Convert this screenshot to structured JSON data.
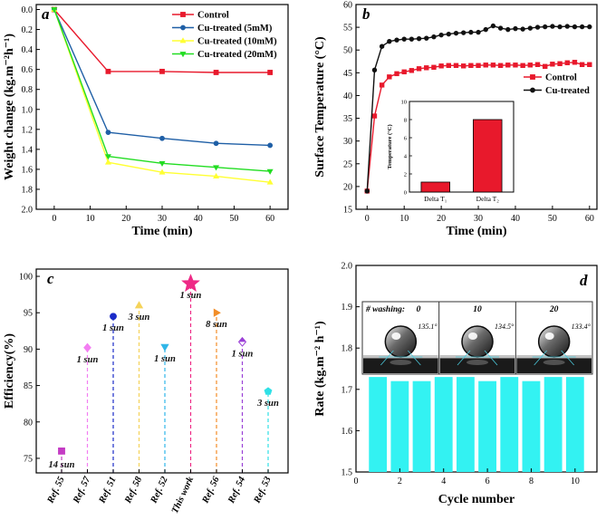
{
  "chart_data": [
    {
      "panel": "a",
      "type": "line",
      "xlabel": "Time (min)",
      "ylabel": "Weight change (kg.m⁻²h⁻¹)",
      "xlim": [
        -5,
        65
      ],
      "ylim": [
        -0.05,
        2.0
      ],
      "y_inverted": true,
      "xticks": [
        0,
        10,
        20,
        30,
        40,
        50,
        60
      ],
      "yticks": [
        0.0,
        0.2,
        0.4,
        0.6,
        0.8,
        1.0,
        1.2,
        1.4,
        1.6,
        1.8,
        2.0
      ],
      "x": [
        0,
        15,
        30,
        45,
        60
      ],
      "legend_position": "top-right",
      "series": [
        {
          "name": "Control",
          "color": "#e8192c",
          "marker": "square",
          "values": [
            0.0,
            0.62,
            0.62,
            0.63,
            0.63
          ]
        },
        {
          "name": "Cu-treated  (5mM)",
          "color": "#1f5fa6",
          "marker": "circle",
          "values": [
            0.0,
            1.23,
            1.29,
            1.34,
            1.36
          ]
        },
        {
          "name": "Cu-treated  (10mM)",
          "color": "#ffff33",
          "marker": "triangle",
          "values": [
            0.0,
            1.53,
            1.63,
            1.67,
            1.73
          ]
        },
        {
          "name": "Cu-treated  (20mM)",
          "color": "#22dd22",
          "marker": "triangle-down",
          "values": [
            0.0,
            1.47,
            1.54,
            1.58,
            1.62
          ]
        }
      ]
    },
    {
      "panel": "b",
      "type": "line",
      "xlabel": "Time (min)",
      "ylabel": "Surface Temperature (°C)",
      "xlim": [
        -3,
        62
      ],
      "ylim": [
        15,
        60
      ],
      "xticks": [
        0,
        10,
        20,
        30,
        40,
        50,
        60
      ],
      "yticks": [
        15,
        20,
        25,
        30,
        35,
        40,
        45,
        50,
        55,
        60
      ],
      "legend_position": "right",
      "series": [
        {
          "name": "Control",
          "color": "#e8192c",
          "marker": "square",
          "x": [
            0,
            2,
            4,
            6,
            8,
            10,
            12,
            14,
            16,
            18,
            20,
            22,
            24,
            26,
            28,
            30,
            32,
            34,
            36,
            38,
            40,
            42,
            44,
            46,
            48,
            50,
            52,
            54,
            56,
            58,
            60
          ],
          "values": [
            19.0,
            35.5,
            42.3,
            44.1,
            44.8,
            45.2,
            45.5,
            45.9,
            46.1,
            46.2,
            46.5,
            46.6,
            46.6,
            46.5,
            46.6,
            46.6,
            46.7,
            46.7,
            46.6,
            46.7,
            46.7,
            46.6,
            46.7,
            46.8,
            46.4,
            46.9,
            47.0,
            47.2,
            47.3,
            46.8,
            46.8
          ]
        },
        {
          "name": "Cu-treated",
          "color": "#111111",
          "marker": "circle",
          "x": [
            0,
            2,
            4,
            6,
            8,
            10,
            12,
            14,
            16,
            18,
            20,
            22,
            24,
            26,
            28,
            30,
            32,
            34,
            36,
            38,
            40,
            42,
            44,
            46,
            48,
            50,
            52,
            54,
            56,
            58,
            60
          ],
          "values": [
            19.0,
            45.6,
            50.8,
            51.9,
            52.2,
            52.4,
            52.4,
            52.5,
            52.6,
            52.9,
            53.3,
            53.5,
            53.7,
            53.8,
            53.9,
            53.9,
            54.5,
            55.3,
            54.8,
            54.5,
            54.7,
            54.6,
            54.8,
            55.0,
            55.1,
            55.2,
            55.1,
            55.2,
            55.1,
            55.1,
            55.1
          ]
        }
      ],
      "inset": {
        "type": "bar",
        "ylabel": "Temperature (°C)",
        "categories": [
          "Delta T₁",
          "Delta T₂"
        ],
        "values": [
          1.1,
          8.0
        ],
        "ylim": [
          0,
          10
        ],
        "yticks": [
          0,
          2,
          4,
          6,
          8,
          10
        ],
        "color": "#e8192c"
      }
    },
    {
      "panel": "c",
      "type": "scatter",
      "ylabel": "Efficiency(%)",
      "ylim": [
        73,
        101
      ],
      "yticks": [
        75,
        80,
        85,
        90,
        95,
        100
      ],
      "categories": [
        "Ref. 55",
        "Ref. 57",
        "Ref. 51",
        "Ref. 58",
        "Ref. 52",
        "This work",
        "Ref. 56",
        "Ref. 54",
        "Ref. 53"
      ],
      "values": [
        76.0,
        90.2,
        94.5,
        96.0,
        90.3,
        99.0,
        95.0,
        91.0,
        84.2
      ],
      "labels": [
        "14 sun",
        "1 sun",
        "1 sun",
        "3 sun",
        "1 sun",
        "1 sun",
        "8 sun",
        "1 sun",
        "3 sun"
      ],
      "colors": [
        "#c43bc4",
        "#f37ef2",
        "#1a2bc8",
        "#f5d35a",
        "#2fb6e8",
        "#ee2a86",
        "#f28d27",
        "#9a3fd6",
        "#2fe0e6"
      ],
      "markers": [
        "square",
        "diamond",
        "circle",
        "triangle",
        "triangle-down",
        "star",
        "triangle-right",
        "diamond-half",
        "pentagon"
      ]
    },
    {
      "panel": "d",
      "type": "bar",
      "xlabel": "Cycle number",
      "ylabel": "Rate (kg.m⁻² h⁻¹)",
      "xlim": [
        0,
        11
      ],
      "ylim": [
        1.5,
        2.0
      ],
      "xticks": [
        0,
        2,
        4,
        6,
        8,
        10
      ],
      "yticks": [
        1.5,
        1.6,
        1.7,
        1.8,
        1.9,
        2.0
      ],
      "categories": [
        1,
        2,
        3,
        4,
        5,
        6,
        7,
        8,
        9,
        10
      ],
      "values": [
        1.73,
        1.72,
        1.72,
        1.73,
        1.73,
        1.72,
        1.73,
        1.72,
        1.73,
        1.73
      ],
      "color": "#33f2f2",
      "inset": {
        "title": "# washing:",
        "washing": [
          "0",
          "10",
          "20"
        ],
        "angles": [
          "135.1°",
          "134.5°",
          "133.4°"
        ]
      }
    }
  ]
}
